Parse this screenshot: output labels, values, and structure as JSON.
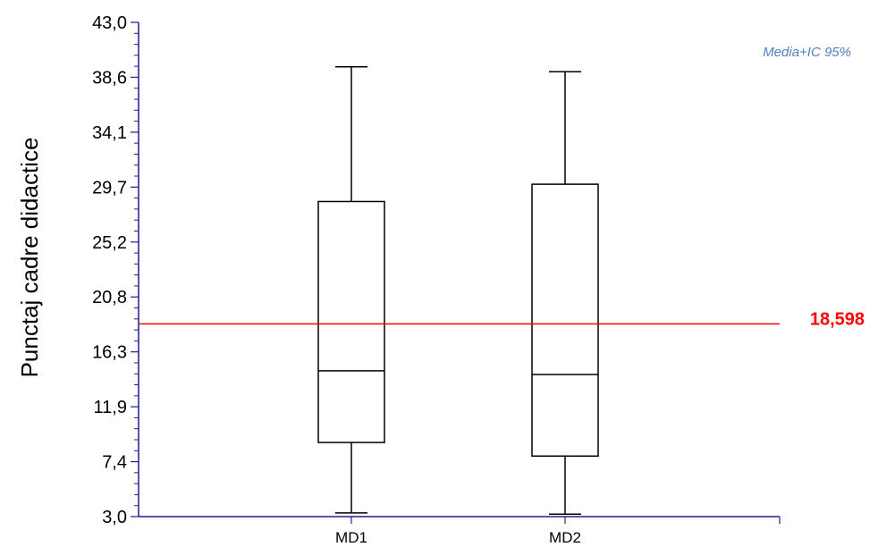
{
  "chart_data": {
    "type": "box",
    "ylabel": "Punctaj cadre didactice",
    "ylim": [
      3.0,
      43.0
    ],
    "yticks": [
      "43,0",
      "38,6",
      "34,1",
      "29,7",
      "25,2",
      "20,8",
      "16,3",
      "11,9",
      "7,4",
      "3,0"
    ],
    "categories": [
      "MD1",
      "MD2"
    ],
    "boxes": [
      {
        "name": "MD1",
        "min": 3.3,
        "q1": 9.0,
        "median": 14.8,
        "q3": 28.5,
        "max": 39.4
      },
      {
        "name": "MD2",
        "min": 3.2,
        "q1": 7.9,
        "median": 14.5,
        "q3": 29.9,
        "max": 39.0
      }
    ],
    "reference_line": {
      "value": 18.598,
      "label": "18,598",
      "color": "#ff0000"
    },
    "annotation": "Media+IC 95%",
    "colors": {
      "axis": "#1f1f8f",
      "annotation": "#4f81bd",
      "reference": "#ff0000"
    }
  }
}
